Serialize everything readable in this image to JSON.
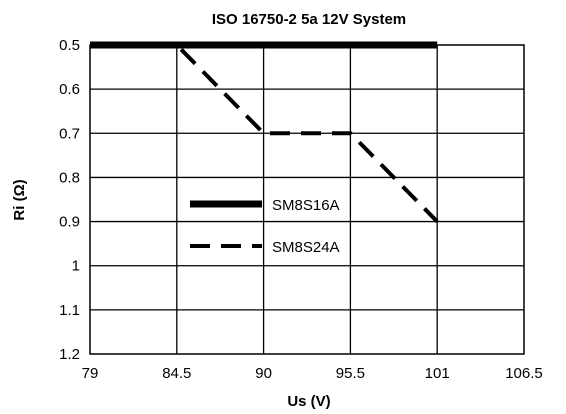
{
  "chart_data": {
    "type": "line",
    "title": "ISO 16750-2 5a 12V System",
    "xlabel": "Us (V)",
    "ylabel": "Ri (Ω)",
    "xlim": [
      79,
      106.5
    ],
    "ylim": [
      0.5,
      1.2
    ],
    "y_inverted": true,
    "x_ticks": [
      "79",
      "84.5",
      "90",
      "95.5",
      "101",
      "106.5"
    ],
    "y_ticks": [
      "0.5",
      "0.6",
      "0.7",
      "0.8",
      "0.9",
      "1",
      "1.1",
      "1.2"
    ],
    "grid": true,
    "legend_position": "center-left",
    "series": [
      {
        "name": "SM8S16A",
        "style": "solid-thick",
        "color": "#000000",
        "x": [
          79,
          101
        ],
        "y": [
          0.5,
          0.5
        ]
      },
      {
        "name": "SM8S24A",
        "style": "dashed",
        "color": "#000000",
        "x": [
          79,
          84.5,
          90,
          95.5,
          101
        ],
        "y": [
          0.5,
          0.5,
          0.7,
          0.7,
          0.9
        ]
      }
    ]
  }
}
